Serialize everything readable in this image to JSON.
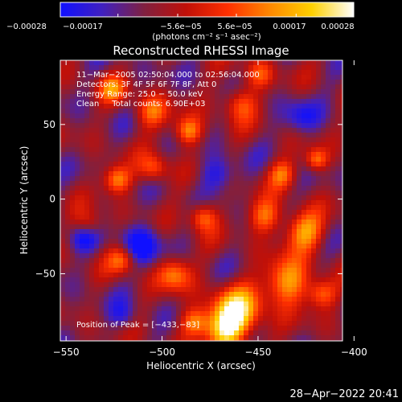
{
  "chart_data": {
    "type": "heatmap",
    "title": "Reconstructed RHESSI Image",
    "xlabel": "Heliocentric X (arcsec)",
    "ylabel": "Heliocentric Y (arcsec)",
    "xlim": [
      -553,
      -406
    ],
    "ylim": [
      -95,
      93
    ],
    "x_ticks": [
      -550,
      -500,
      -450,
      -400
    ],
    "x_tick_labels": [
      "−550",
      "−500",
      "−450",
      "−400"
    ],
    "y_ticks": [
      50,
      0,
      -50
    ],
    "y_tick_labels": [
      "50",
      "0",
      "−50"
    ],
    "colorbar": {
      "range": [
        -0.00028,
        0.00028
      ],
      "ticks": [
        -0.00028,
        -0.00017,
        -5.6e-05,
        5.6e-05,
        0.00017,
        0.00028
      ],
      "tick_labels": [
        "−0.00028",
        "−0.00017",
        "−5.6e−05",
        "5.6e−05",
        "0.00017",
        "0.00028"
      ],
      "units": "(photons cm⁻² s⁻¹ asec⁻²)",
      "colors": [
        "#1010ff",
        "#4020c0",
        "#802040",
        "#c01008",
        "#ff3000",
        "#ff8800",
        "#ffd000",
        "#ffffff"
      ]
    },
    "info_lines": [
      "11−Mar−2005 02:50:04.000 to 02:56:04.000",
      "Detectors: 3F 4F 5F 6F 7F 8F, Att 0",
      "Energy Range: 25.0 − 50.0 keV",
      "Clean     Total counts: 6.90E+03"
    ],
    "peak_label": "Position of Peak = [−433,−83]",
    "peak_position": [
      -433,
      -83
    ],
    "grid": false
  },
  "footer": {
    "timestamp": "28−Apr−2022 20:41"
  }
}
